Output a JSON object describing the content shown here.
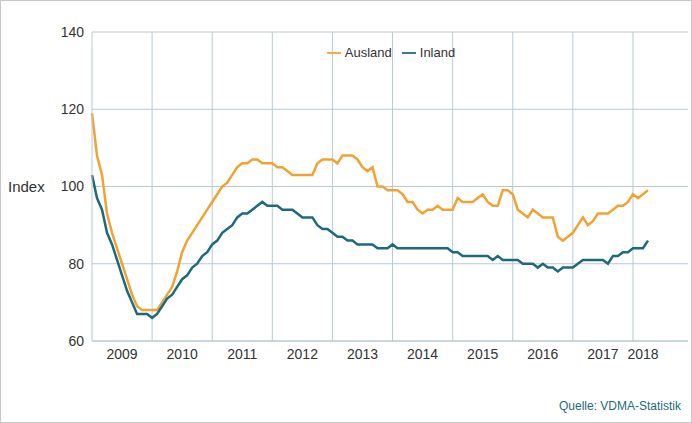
{
  "chart_data": {
    "type": "line",
    "ylabel": "Index",
    "source": "Quelle: VDMA-Statistik",
    "categories": [
      null,
      null,
      null,
      null,
      null,
      null,
      "2009",
      null,
      null,
      null,
      null,
      null,
      null,
      null,
      null,
      null,
      null,
      null,
      "2010",
      null,
      null,
      null,
      null,
      null,
      null,
      null,
      null,
      null,
      null,
      null,
      "2011",
      null,
      null,
      null,
      null,
      null,
      null,
      null,
      null,
      null,
      null,
      null,
      "2012",
      null,
      null,
      null,
      null,
      null,
      null,
      null,
      null,
      null,
      null,
      null,
      "2013",
      null,
      null,
      null,
      null,
      null,
      null,
      null,
      null,
      null,
      null,
      null,
      "2014",
      null,
      null,
      null,
      null,
      null,
      null,
      null,
      null,
      null,
      null,
      null,
      "2015",
      null,
      null,
      null,
      null,
      null,
      null,
      null,
      null,
      null,
      null,
      null,
      "2016",
      null,
      null,
      null,
      null,
      null,
      null,
      null,
      null,
      null,
      null,
      null,
      "2017",
      null,
      null,
      null,
      null,
      null,
      null,
      null,
      "2018",
      null
    ],
    "series": [
      {
        "name": "Ausland",
        "color": "#f0a232",
        "values": [
          119,
          108,
          103,
          93,
          88,
          84,
          80,
          76,
          72,
          69,
          68,
          68,
          68,
          68,
          70,
          72,
          74,
          78,
          83,
          86,
          88,
          90,
          92,
          94,
          96,
          98,
          100,
          101,
          103,
          105,
          106,
          106,
          107,
          107,
          106,
          106,
          106,
          105,
          105,
          104,
          103,
          103,
          103,
          103,
          103,
          106,
          107,
          107,
          107,
          106,
          108,
          108,
          108,
          107,
          105,
          104,
          105,
          100,
          100,
          99,
          99,
          99,
          98,
          96,
          96,
          94,
          93,
          94,
          94,
          95,
          94,
          94,
          94,
          97,
          96,
          96,
          96,
          97,
          98,
          96,
          95,
          95,
          99,
          99,
          98,
          94,
          93,
          92,
          94,
          93,
          92,
          92,
          92,
          87,
          86,
          87,
          88,
          90,
          92,
          90,
          91,
          93,
          93,
          93,
          94,
          95,
          95,
          96,
          98,
          97,
          98,
          99
        ]
      },
      {
        "name": "Inland",
        "color": "#1c6a7a",
        "values": [
          103,
          97,
          94,
          88,
          85,
          81,
          77,
          73,
          70,
          67,
          67,
          67,
          66,
          67,
          69,
          71,
          72,
          74,
          76,
          77,
          79,
          80,
          82,
          83,
          85,
          86,
          88,
          89,
          90,
          92,
          93,
          93,
          94,
          95,
          96,
          95,
          95,
          95,
          94,
          94,
          94,
          93,
          92,
          92,
          92,
          90,
          89,
          89,
          88,
          87,
          87,
          86,
          86,
          85,
          85,
          85,
          85,
          84,
          84,
          84,
          85,
          84,
          84,
          84,
          84,
          84,
          84,
          84,
          84,
          84,
          84,
          84,
          83,
          83,
          82,
          82,
          82,
          82,
          82,
          82,
          81,
          82,
          81,
          81,
          81,
          81,
          80,
          80,
          80,
          79,
          80,
          79,
          79,
          78,
          79,
          79,
          79,
          80,
          81,
          81,
          81,
          81,
          81,
          80,
          82,
          82,
          83,
          83,
          84,
          84,
          84,
          86
        ]
      }
    ],
    "ylim": [
      60,
      140
    ],
    "yticks": [
      60,
      80,
      100,
      120,
      140
    ],
    "grid": true,
    "legend": "top",
    "marker": "none"
  }
}
